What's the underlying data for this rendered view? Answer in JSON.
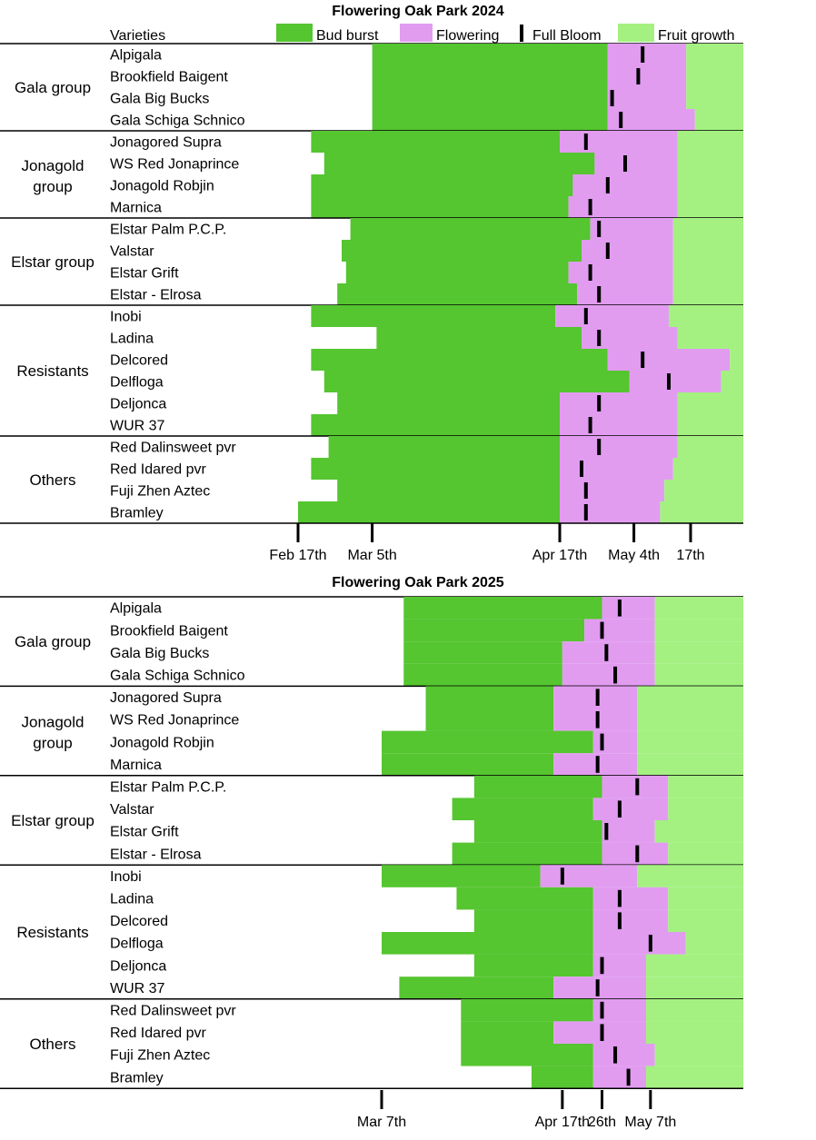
{
  "legend": {
    "header": "Varieties",
    "bud_burst": "Bud burst",
    "flowering": "Flowering",
    "full_bloom": "Full Bloom",
    "fruit_growth": "Fruit growth"
  },
  "colors": {
    "bud_burst": "#55c530",
    "flowering": "#e19cf0",
    "full_bloom": "#000000",
    "fruit_growth": "#a4f181",
    "separator": "#000000"
  },
  "chart_data": [
    {
      "type": "bar",
      "orientation": "horizontal",
      "stacked": true,
      "title": "Flowering Oak Park 2024",
      "x_ticks": [
        {
          "label": "Feb 17th",
          "date": "2024-02-17"
        },
        {
          "label": "Mar 5th",
          "date": "2024-03-05"
        },
        {
          "label": "Apr 17th",
          "date": "2024-04-17"
        },
        {
          "label": "May 4th",
          "date": "2024-05-04"
        },
        {
          "label": "17th",
          "date": "2024-05-17"
        }
      ],
      "xlim": [
        "2024-02-09",
        "2024-05-28"
      ],
      "groups": [
        {
          "name": "Gala group",
          "varieties": [
            {
              "name": "Alpigala",
              "bud_burst": "2024-03-05",
              "flowering": "2024-04-28",
              "full_bloom": "2024-05-06",
              "fruit_growth": "2024-05-16"
            },
            {
              "name": "Brookfield Baigent",
              "bud_burst": "2024-03-05",
              "flowering": "2024-04-28",
              "full_bloom": "2024-05-05",
              "fruit_growth": "2024-05-16"
            },
            {
              "name": "Gala Big Bucks",
              "bud_burst": "2024-03-05",
              "flowering": "2024-04-28",
              "full_bloom": "2024-04-29",
              "fruit_growth": "2024-05-16"
            },
            {
              "name": "Gala Schiga Schnico",
              "bud_burst": "2024-03-05",
              "flowering": "2024-04-28",
              "full_bloom": "2024-05-01",
              "fruit_growth": "2024-05-18"
            }
          ]
        },
        {
          "name": "Jonagold group",
          "varieties": [
            {
              "name": "Jonagored Supra",
              "bud_burst": "2024-02-20",
              "flowering": "2024-04-17",
              "full_bloom": "2024-04-23",
              "fruit_growth": "2024-05-14"
            },
            {
              "name": "WS Red Jonaprince",
              "bud_burst": "2024-02-23",
              "flowering": "2024-04-25",
              "full_bloom": "2024-05-02",
              "fruit_growth": "2024-05-14"
            },
            {
              "name": "Jonagold Robjin",
              "bud_burst": "2024-02-20",
              "flowering": "2024-04-20",
              "full_bloom": "2024-04-28",
              "fruit_growth": "2024-05-14"
            },
            {
              "name": "Marnica",
              "bud_burst": "2024-02-20",
              "flowering": "2024-04-19",
              "full_bloom": "2024-04-24",
              "fruit_growth": "2024-05-14"
            }
          ]
        },
        {
          "name": "Elstar group",
          "varieties": [
            {
              "name": "Elstar Palm P.C.P.",
              "bud_burst": "2024-02-29",
              "flowering": "2024-04-24",
              "full_bloom": "2024-04-26",
              "fruit_growth": "2024-05-13"
            },
            {
              "name": "Valstar",
              "bud_burst": "2024-02-27",
              "flowering": "2024-04-22",
              "full_bloom": "2024-04-28",
              "fruit_growth": "2024-05-13"
            },
            {
              "name": "Elstar Grift",
              "bud_burst": "2024-02-28",
              "flowering": "2024-04-19",
              "full_bloom": "2024-04-24",
              "fruit_growth": "2024-05-13"
            },
            {
              "name": "Elstar - Elrosa",
              "bud_burst": "2024-02-26",
              "flowering": "2024-04-21",
              "full_bloom": "2024-04-26",
              "fruit_growth": "2024-05-13"
            }
          ]
        },
        {
          "name": "Resistants",
          "varieties": [
            {
              "name": "Inobi",
              "bud_burst": "2024-02-20",
              "flowering": "2024-04-16",
              "full_bloom": "2024-04-23",
              "fruit_growth": "2024-05-12"
            },
            {
              "name": "Ladina",
              "bud_burst": "2024-03-06",
              "flowering": "2024-04-22",
              "full_bloom": "2024-04-26",
              "fruit_growth": "2024-05-14"
            },
            {
              "name": "Delcored",
              "bud_burst": "2024-02-20",
              "flowering": "2024-04-28",
              "full_bloom": "2024-05-06",
              "fruit_growth": "2024-05-26"
            },
            {
              "name": "Delfloga",
              "bud_burst": "2024-02-23",
              "flowering": "2024-05-03",
              "full_bloom": "2024-05-12",
              "fruit_growth": "2024-05-24"
            },
            {
              "name": "Deljonca",
              "bud_burst": "2024-02-26",
              "flowering": "2024-04-17",
              "full_bloom": "2024-04-26",
              "fruit_growth": "2024-05-14"
            },
            {
              "name": "WUR 37",
              "bud_burst": "2024-02-20",
              "flowering": "2024-04-17",
              "full_bloom": "2024-04-24",
              "fruit_growth": "2024-05-14"
            }
          ]
        },
        {
          "name": "Others",
          "varieties": [
            {
              "name": "Red Dalinsweet pvr",
              "bud_burst": "2024-02-24",
              "flowering": "2024-04-17",
              "full_bloom": "2024-04-26",
              "fruit_growth": "2024-05-14"
            },
            {
              "name": "Red Idared pvr",
              "bud_burst": "2024-02-20",
              "flowering": "2024-04-17",
              "full_bloom": "2024-04-22",
              "fruit_growth": "2024-05-13"
            },
            {
              "name": "Fuji Zhen Aztec",
              "bud_burst": "2024-02-26",
              "flowering": "2024-04-17",
              "full_bloom": "2024-04-23",
              "fruit_growth": "2024-05-11"
            },
            {
              "name": "Bramley",
              "bud_burst": "2024-02-17",
              "flowering": "2024-04-17",
              "full_bloom": "2024-04-23",
              "fruit_growth": "2024-05-10"
            }
          ]
        }
      ]
    },
    {
      "type": "bar",
      "orientation": "horizontal",
      "stacked": true,
      "title": "Flowering Oak Park 2025",
      "x_ticks": [
        {
          "label": "Mar 7th",
          "date": "2025-03-07"
        },
        {
          "label": "Apr 17th",
          "date": "2025-04-17"
        },
        {
          "label": "26th",
          "date": "2025-04-26"
        },
        {
          "label": "May 7th",
          "date": "2025-05-07"
        }
      ],
      "xlim": [
        "2025-02-09",
        "2025-05-20"
      ],
      "groups": [
        {
          "name": "Gala group",
          "varieties": [
            {
              "name": "Alpigala",
              "bud_burst": "2025-03-12",
              "flowering": "2025-04-26",
              "full_bloom": "2025-04-30",
              "fruit_growth": "2025-05-08"
            },
            {
              "name": "Brookfield Baigent",
              "bud_burst": "2025-03-12",
              "flowering": "2025-04-22",
              "full_bloom": "2025-04-26",
              "fruit_growth": "2025-05-08"
            },
            {
              "name": "Gala Big Bucks",
              "bud_burst": "2025-03-12",
              "flowering": "2025-04-17",
              "full_bloom": "2025-04-27",
              "fruit_growth": "2025-05-08"
            },
            {
              "name": "Gala Schiga Schnico",
              "bud_burst": "2025-03-12",
              "flowering": "2025-04-17",
              "full_bloom": "2025-04-29",
              "fruit_growth": "2025-05-08"
            }
          ]
        },
        {
          "name": "Jonagold group",
          "varieties": [
            {
              "name": "Jonagored Supra",
              "bud_burst": "2025-03-17",
              "flowering": "2025-04-15",
              "full_bloom": "2025-04-25",
              "fruit_growth": "2025-05-04"
            },
            {
              "name": "WS Red Jonaprince",
              "bud_burst": "2025-03-17",
              "flowering": "2025-04-15",
              "full_bloom": "2025-04-25",
              "fruit_growth": "2025-05-04"
            },
            {
              "name": "Jonagold Robjin",
              "bud_burst": "2025-03-07",
              "flowering": "2025-04-24",
              "full_bloom": "2025-04-26",
              "fruit_growth": "2025-05-04"
            },
            {
              "name": "Marnica",
              "bud_burst": "2025-03-07",
              "flowering": "2025-04-15",
              "full_bloom": "2025-04-25",
              "fruit_growth": "2025-05-04"
            }
          ]
        },
        {
          "name": "Elstar group",
          "varieties": [
            {
              "name": "Elstar Palm P.C.P.",
              "bud_burst": "2025-03-28",
              "flowering": "2025-04-26",
              "full_bloom": "2025-05-04",
              "fruit_growth": "2025-05-11"
            },
            {
              "name": "Valstar",
              "bud_burst": "2025-03-23",
              "flowering": "2025-04-24",
              "full_bloom": "2025-04-30",
              "fruit_growth": "2025-05-11"
            },
            {
              "name": "Elstar Grift",
              "bud_burst": "2025-03-28",
              "flowering": "2025-04-26",
              "full_bloom": "2025-04-27",
              "fruit_growth": "2025-05-08"
            },
            {
              "name": "Elstar - Elrosa",
              "bud_burst": "2025-03-23",
              "flowering": "2025-04-26",
              "full_bloom": "2025-05-04",
              "fruit_growth": "2025-05-11"
            }
          ]
        },
        {
          "name": "Resistants",
          "varieties": [
            {
              "name": "Inobi",
              "bud_burst": "2025-03-07",
              "flowering": "2025-04-12",
              "full_bloom": "2025-04-17",
              "fruit_growth": "2025-05-04"
            },
            {
              "name": "Ladina",
              "bud_burst": "2025-03-24",
              "flowering": "2025-04-24",
              "full_bloom": "2025-04-30",
              "fruit_growth": "2025-05-11"
            },
            {
              "name": "Delcored",
              "bud_burst": "2025-03-28",
              "flowering": "2025-04-24",
              "full_bloom": "2025-04-30",
              "fruit_growth": "2025-05-11"
            },
            {
              "name": "Delfloga",
              "bud_burst": "2025-03-07",
              "flowering": "2025-04-24",
              "full_bloom": "2025-05-07",
              "fruit_growth": "2025-05-15"
            },
            {
              "name": "Deljonca",
              "bud_burst": "2025-03-28",
              "flowering": "2025-04-24",
              "full_bloom": "2025-04-26",
              "fruit_growth": "2025-05-06"
            },
            {
              "name": "WUR 37",
              "bud_burst": "2025-03-11",
              "flowering": "2025-04-15",
              "full_bloom": "2025-04-25",
              "fruit_growth": "2025-05-06"
            }
          ]
        },
        {
          "name": "Others",
          "varieties": [
            {
              "name": "Red Dalinsweet pvr",
              "bud_burst": "2025-03-25",
              "flowering": "2025-04-24",
              "full_bloom": "2025-04-26",
              "fruit_growth": "2025-05-06"
            },
            {
              "name": "Red Idared pvr",
              "bud_burst": "2025-03-25",
              "flowering": "2025-04-15",
              "full_bloom": "2025-04-26",
              "fruit_growth": "2025-05-06"
            },
            {
              "name": "Fuji Zhen Aztec",
              "bud_burst": "2025-03-25",
              "flowering": "2025-04-24",
              "full_bloom": "2025-04-29",
              "fruit_growth": "2025-05-08"
            },
            {
              "name": "Bramley",
              "bud_burst": "2025-04-10",
              "flowering": "2025-04-24",
              "full_bloom": "2025-05-02",
              "fruit_growth": "2025-05-06"
            }
          ]
        }
      ]
    }
  ]
}
